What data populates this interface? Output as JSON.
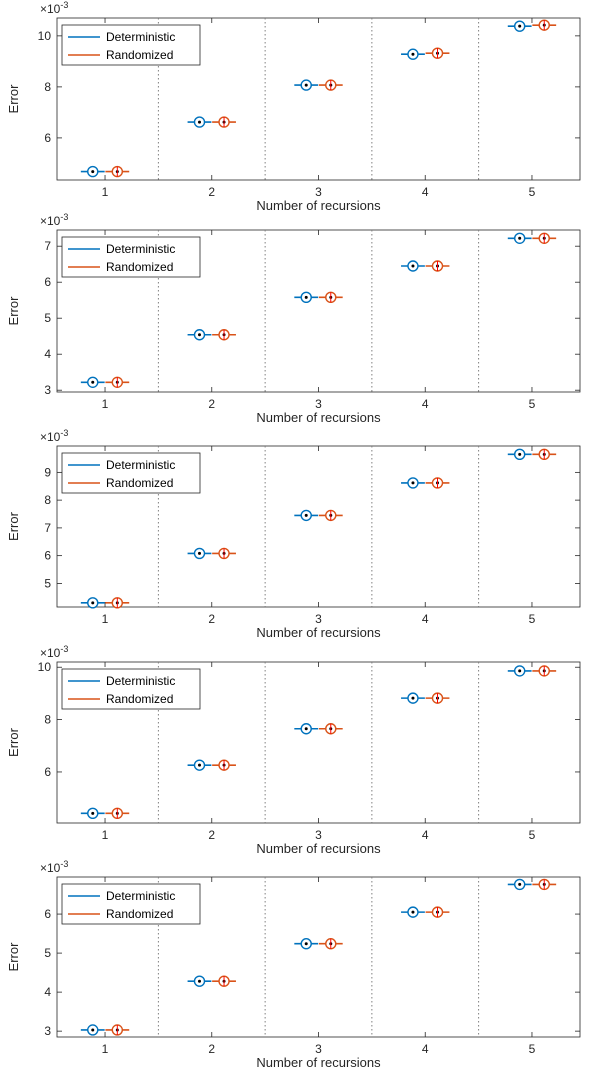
{
  "colors": {
    "deterministic": "#0072BD",
    "randomized": "#D95319",
    "axis": "#262626",
    "divider": "#808080",
    "median": "#FF0000"
  },
  "legend": {
    "deterministic": "Deterministic",
    "randomized": "Randomized"
  },
  "chart_data": [
    {
      "type": "boxplot",
      "xlabel": "Number of recursions",
      "ylabel": "Error",
      "exponent_label": "×10",
      "exponent_power": "-3",
      "categories": [
        "1",
        "2",
        "3",
        "4",
        "5"
      ],
      "xlim": [
        0.55,
        5.45
      ],
      "ylim": [
        4.35,
        10.7
      ],
      "yticks": [
        6,
        8,
        10
      ],
      "grid": false,
      "legend_position": "top-left",
      "dividers": [
        1.5,
        2.5,
        3.5,
        4.5
      ],
      "series": [
        {
          "name": "Deterministic",
          "values": [
            4.68,
            6.62,
            8.07,
            9.28,
            10.38
          ]
        },
        {
          "name": "Randomized",
          "values": [
            4.68,
            6.62,
            8.07,
            9.32,
            10.42
          ]
        }
      ]
    },
    {
      "type": "boxplot",
      "xlabel": "Number of recursions",
      "ylabel": "Error",
      "exponent_label": "×10",
      "exponent_power": "-3",
      "categories": [
        "1",
        "2",
        "3",
        "4",
        "5"
      ],
      "xlim": [
        0.55,
        5.45
      ],
      "ylim": [
        2.95,
        7.45
      ],
      "yticks": [
        3,
        4,
        5,
        6,
        7
      ],
      "grid": false,
      "legend_position": "top-left",
      "dividers": [
        1.5,
        2.5,
        3.5,
        4.5
      ],
      "series": [
        {
          "name": "Deterministic",
          "values": [
            3.22,
            4.54,
            5.58,
            6.45,
            7.22
          ]
        },
        {
          "name": "Randomized",
          "values": [
            3.22,
            4.54,
            5.58,
            6.45,
            7.22
          ]
        }
      ]
    },
    {
      "type": "boxplot",
      "xlabel": "Number of recursions",
      "ylabel": "Error",
      "exponent_label": "×10",
      "exponent_power": "-3",
      "categories": [
        "1",
        "2",
        "3",
        "4",
        "5"
      ],
      "xlim": [
        0.55,
        5.45
      ],
      "ylim": [
        4.15,
        9.95
      ],
      "yticks": [
        5,
        6,
        7,
        8,
        9
      ],
      "grid": false,
      "legend_position": "top-left",
      "dividers": [
        1.5,
        2.5,
        3.5,
        4.5
      ],
      "series": [
        {
          "name": "Deterministic",
          "values": [
            4.3,
            6.08,
            7.45,
            8.62,
            9.65
          ]
        },
        {
          "name": "Randomized",
          "values": [
            4.3,
            6.08,
            7.45,
            8.62,
            9.65
          ]
        }
      ]
    },
    {
      "type": "boxplot",
      "xlabel": "Number of recursions",
      "ylabel": "Error",
      "exponent_label": "×10",
      "exponent_power": "-3",
      "categories": [
        "1",
        "2",
        "3",
        "4",
        "5"
      ],
      "xlim": [
        0.55,
        5.45
      ],
      "ylim": [
        4.05,
        10.2
      ],
      "yticks": [
        6,
        8,
        10
      ],
      "grid": false,
      "legend_position": "top-left",
      "dividers": [
        1.5,
        2.5,
        3.5,
        4.5
      ],
      "series": [
        {
          "name": "Deterministic",
          "values": [
            4.42,
            6.26,
            7.65,
            8.82,
            9.86
          ]
        },
        {
          "name": "Randomized",
          "values": [
            4.42,
            6.26,
            7.65,
            8.82,
            9.86
          ]
        }
      ]
    },
    {
      "type": "boxplot",
      "xlabel": "Number of recursions",
      "ylabel": "Error",
      "exponent_label": "×10",
      "exponent_power": "-3",
      "categories": [
        "1",
        "2",
        "3",
        "4",
        "5"
      ],
      "xlim": [
        0.55,
        5.45
      ],
      "ylim": [
        2.85,
        6.95
      ],
      "yticks": [
        3,
        4,
        5,
        6
      ],
      "grid": false,
      "legend_position": "top-left",
      "dividers": [
        1.5,
        2.5,
        3.5,
        4.5
      ],
      "series": [
        {
          "name": "Deterministic",
          "values": [
            3.03,
            4.28,
            5.24,
            6.05,
            6.76
          ]
        },
        {
          "name": "Randomized",
          "values": [
            3.03,
            4.28,
            5.24,
            6.05,
            6.76
          ]
        }
      ]
    }
  ]
}
